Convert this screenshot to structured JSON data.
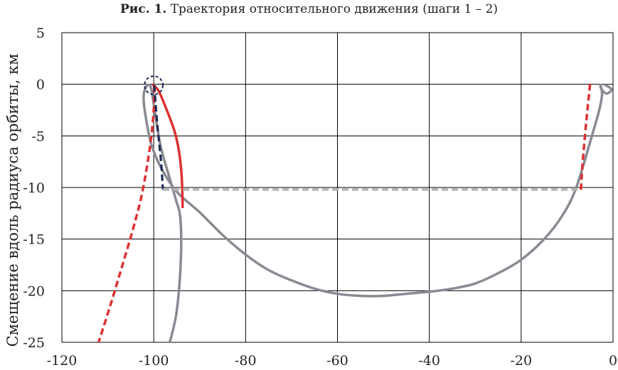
{
  "caption": {
    "label": "Рис. 1.",
    "text": "Траектория относительного движения (шаги 1 – 2)"
  },
  "chart_data": {
    "type": "line",
    "title": "Траектория относительного движения (шаги 1 – 2)",
    "xlabel": "",
    "ylabel": "Смещение вдоль радиуса орбиты, км",
    "xlim": [
      -120,
      0
    ],
    "ylim": [
      -25,
      5
    ],
    "x_ticks": [
      -120,
      -100,
      -80,
      -60,
      -40,
      -20,
      0
    ],
    "y_ticks": [
      5,
      0,
      -5,
      -10,
      -15,
      -20,
      -25
    ],
    "x_tick_labels": [
      "-120",
      "-100",
      "-80",
      "-60",
      "-40",
      "-20",
      "0"
    ],
    "y_tick_labels": [
      "5",
      "0",
      "-5",
      "-10",
      "-15",
      "-20",
      "-25"
    ],
    "grid": true,
    "legend": "none",
    "colors": {
      "gray": "#8a8a93",
      "red": "#dc3232",
      "navy": "#1f2a55",
      "lightgray": "#b4b4b8",
      "grid": "#000000"
    },
    "series": [
      {
        "style": "solid",
        "color": "#8a8a93",
        "width": 3.5,
        "points": [
          [
            -2,
            0
          ],
          [
            -0.3,
            -0.5
          ],
          [
            -1.5,
            -0.9
          ],
          [
            -2.6,
            -0.4
          ],
          [
            -2.7,
            -0.1
          ],
          [
            -2.4,
            -1
          ],
          [
            -3,
            -2.5
          ],
          [
            -4.6,
            -5
          ],
          [
            -8,
            -10
          ],
          [
            -11,
            -12.7
          ],
          [
            -15,
            -15
          ],
          [
            -20,
            -17
          ],
          [
            -25,
            -18.3
          ],
          [
            -30,
            -19.3
          ],
          [
            -35,
            -19.8
          ],
          [
            -40,
            -20.1
          ],
          [
            -45,
            -20.3
          ],
          [
            -50,
            -20.5
          ],
          [
            -55,
            -20.5
          ],
          [
            -60,
            -20.3
          ],
          [
            -65,
            -19.8
          ],
          [
            -70,
            -19
          ],
          [
            -75,
            -18
          ],
          [
            -80,
            -16.5
          ],
          [
            -85,
            -14.6
          ],
          [
            -90,
            -12.4
          ],
          [
            -95,
            -10.4
          ],
          [
            -98.5,
            -8
          ],
          [
            -100.6,
            -5.7
          ],
          [
            -101.8,
            -3
          ],
          [
            -102.2,
            -1.5
          ],
          [
            -102,
            -0.6
          ],
          [
            -101.2,
            -0.05
          ],
          [
            -100.5,
            -0.5
          ],
          [
            -99.8,
            -2.5
          ],
          [
            -98.5,
            -6
          ],
          [
            -96.6,
            -9
          ],
          [
            -95.3,
            -11
          ],
          [
            -94.2,
            -13
          ],
          [
            -94.1,
            -17
          ],
          [
            -95,
            -22
          ],
          [
            -96.5,
            -25
          ]
        ]
      },
      {
        "style": "solid",
        "color": "#dc3232",
        "width": 3.5,
        "points": [
          [
            -100.3,
            0
          ],
          [
            -99,
            -0.6
          ],
          [
            -97.6,
            -2
          ],
          [
            -95.5,
            -4.5
          ],
          [
            -94.5,
            -6.5
          ],
          [
            -93.9,
            -9
          ],
          [
            -93.7,
            -12
          ]
        ]
      },
      {
        "style": "dashed",
        "color": "#dc3232",
        "width": 3.5,
        "points": [
          [
            -99.9,
            -0.2
          ],
          [
            -100,
            -2.5
          ],
          [
            -100.8,
            -6
          ],
          [
            -102.5,
            -10.5
          ],
          [
            -104.5,
            -14
          ],
          [
            -107,
            -17.8
          ],
          [
            -109.5,
            -21.5
          ],
          [
            -112,
            -25
          ]
        ]
      },
      {
        "style": "dashed",
        "color": "#1f2a55",
        "width": 3.2,
        "points": [
          [
            -99.9,
            -0.1
          ],
          [
            -99.2,
            -4
          ],
          [
            -98.4,
            -7.5
          ],
          [
            -98,
            -10.2
          ]
        ]
      },
      {
        "style": "dashed",
        "color": "#dc3232",
        "width": 3.5,
        "points": [
          [
            -5,
            0
          ],
          [
            -5.8,
            -3.5
          ],
          [
            -6.6,
            -7.5
          ],
          [
            -7,
            -10.3
          ]
        ]
      },
      {
        "style": "dashed",
        "color": "#b4b4b8",
        "width": 3.5,
        "points": [
          [
            -98,
            -10.2
          ],
          [
            -7,
            -10.2
          ]
        ]
      }
    ],
    "annotations": [
      {
        "shape": "dashed-circle",
        "color": "#1f2a55",
        "center": [
          -100,
          -0.1
        ],
        "radius_x_units": 2
      }
    ]
  }
}
